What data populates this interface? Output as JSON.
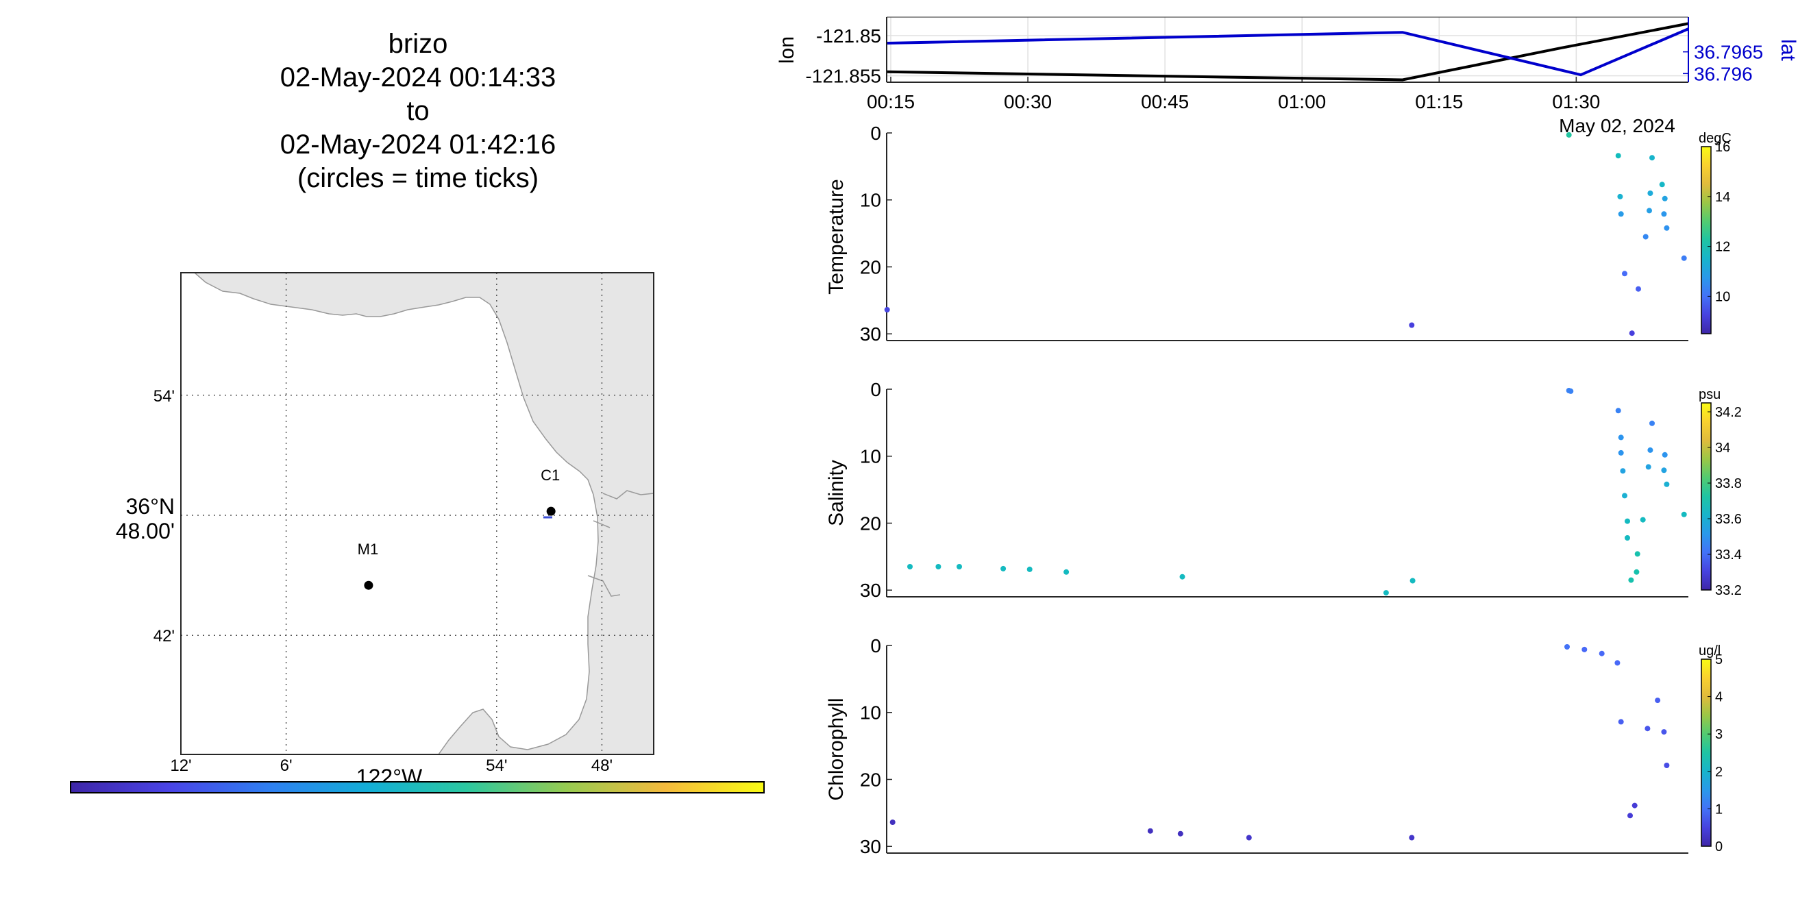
{
  "title": {
    "lines": [
      "brizo",
      "02-May-2024 00:14:33",
      "to",
      "02-May-2024 01:42:16",
      "(circles = time ticks)"
    ]
  },
  "colors": {
    "land": "#e6e6e6",
    "track_lon": "#000000",
    "track_lat": "#0000cc",
    "axis": "#262626"
  },
  "map": {
    "lat_labels": [
      {
        "text": "54'",
        "lat_min": 54
      },
      {
        "text": "36°N",
        "sub": "48.00'",
        "lat_min": 48
      },
      {
        "text": "42'",
        "lat_min": 42
      }
    ],
    "lon_labels": [
      {
        "text": "12'",
        "lon_min": 12
      },
      {
        "text": "6'",
        "lon_min": 6
      },
      {
        "text": "54'",
        "lon_min": -6
      },
      {
        "text": "48'",
        "lon_min": -12
      }
    ],
    "lon_title": "122°W",
    "moorings": [
      {
        "name": "M1",
        "lat_min": 44.5,
        "lon_min": 1.3
      },
      {
        "name": "C1",
        "lat_min": 48.2,
        "lon_min": -9.1
      }
    ],
    "time_colorbar": [
      "#3e26a8",
      "#4a44e6",
      "#2f7ff1",
      "#13aed7",
      "#2cc8a0",
      "#96cb51",
      "#f4ba3d",
      "#f9fb15"
    ]
  },
  "chart_data": [
    {
      "type": "line",
      "name": "position",
      "x_tick_labels": [
        "00:15",
        "00:30",
        "00:45",
        "01:00",
        "01:15",
        "01:30"
      ],
      "x_minutes": [
        15,
        30,
        45,
        60,
        75,
        90
      ],
      "date_label": "May 02, 2024",
      "xlim": [
        14.55,
        102.27
      ],
      "ylabel_left": "lon",
      "ylabel_right": "lat",
      "left_ticks": [
        "-121.85",
        "-121.855"
      ],
      "right_ticks": [
        "36.7965",
        "36.796"
      ],
      "ylim_left": [
        -121.8558,
        -121.8477
      ],
      "ylim_right": [
        36.7958,
        36.7973
      ],
      "series": [
        {
          "axis": "left",
          "color": "#000000",
          "x_minutes": [
            14.55,
            71.0,
            88.5,
            102.27
          ],
          "values": [
            -121.8545,
            -121.8555,
            -121.8515,
            -121.8485
          ]
        },
        {
          "axis": "right",
          "color": "#0000cc",
          "x_minutes": [
            14.55,
            71.0,
            90.5,
            102.27
          ],
          "values": [
            36.7967,
            36.79695,
            36.79597,
            36.79703
          ]
        }
      ]
    },
    {
      "type": "scatter",
      "name": "temperature",
      "ylabel": "Temperature",
      "colorbar_unit": "degC",
      "colorbar_ticks": [
        10,
        12,
        14,
        16
      ],
      "clim": [
        8.5,
        16
      ],
      "ylim": [
        0,
        31
      ],
      "y_ticks": [
        0,
        10,
        20,
        30
      ],
      "points": [
        {
          "t": 14.6,
          "depth": 26.4,
          "value": 9.3
        },
        {
          "t": 72.0,
          "depth": 28.7,
          "value": 9.2
        },
        {
          "t": 89.2,
          "depth": 0.3,
          "value": 12.3
        },
        {
          "t": 94.6,
          "depth": 3.4,
          "value": 11.8
        },
        {
          "t": 98.3,
          "depth": 3.7,
          "value": 11.5
        },
        {
          "t": 99.4,
          "depth": 7.7,
          "value": 11.6
        },
        {
          "t": 94.8,
          "depth": 9.5,
          "value": 11.4
        },
        {
          "t": 98.1,
          "depth": 9.0,
          "value": 11.2
        },
        {
          "t": 99.7,
          "depth": 9.8,
          "value": 11.0
        },
        {
          "t": 94.9,
          "depth": 12.1,
          "value": 10.8
        },
        {
          "t": 98.0,
          "depth": 11.6,
          "value": 10.9
        },
        {
          "t": 99.6,
          "depth": 12.1,
          "value": 10.7
        },
        {
          "t": 99.9,
          "depth": 14.2,
          "value": 10.6
        },
        {
          "t": 97.6,
          "depth": 15.5,
          "value": 10.4
        },
        {
          "t": 101.8,
          "depth": 18.7,
          "value": 10.2
        },
        {
          "t": 95.3,
          "depth": 21.0,
          "value": 9.9
        },
        {
          "t": 96.8,
          "depth": 23.3,
          "value": 9.7
        },
        {
          "t": 96.1,
          "depth": 29.9,
          "value": 9.2
        }
      ]
    },
    {
      "type": "scatter",
      "name": "salinity",
      "ylabel": "Salinity",
      "colorbar_unit": "psu",
      "colorbar_ticks": [
        33.2,
        33.4,
        33.6,
        33.8,
        34,
        34.2
      ],
      "clim": [
        33.2,
        34.25
      ],
      "ylim": [
        0,
        31
      ],
      "y_ticks": [
        0,
        10,
        20,
        30
      ],
      "points": [
        {
          "t": 17.1,
          "depth": 26.5,
          "value": 33.65
        },
        {
          "t": 20.2,
          "depth": 26.5,
          "value": 33.65
        },
        {
          "t": 22.5,
          "depth": 26.5,
          "value": 33.65
        },
        {
          "t": 27.3,
          "depth": 26.8,
          "value": 33.65
        },
        {
          "t": 30.2,
          "depth": 26.9,
          "value": 33.65
        },
        {
          "t": 34.2,
          "depth": 27.3,
          "value": 33.65
        },
        {
          "t": 46.9,
          "depth": 28.0,
          "value": 33.65
        },
        {
          "t": 69.2,
          "depth": 30.4,
          "value": 33.65
        },
        {
          "t": 72.1,
          "depth": 28.6,
          "value": 33.65
        },
        {
          "t": 89.2,
          "depth": 0.2,
          "value": 33.45
        },
        {
          "t": 89.4,
          "depth": 0.3,
          "value": 33.45
        },
        {
          "t": 94.6,
          "depth": 3.2,
          "value": 33.45
        },
        {
          "t": 98.3,
          "depth": 5.1,
          "value": 33.45
        },
        {
          "t": 94.9,
          "depth": 7.2,
          "value": 33.5
        },
        {
          "t": 94.9,
          "depth": 9.5,
          "value": 33.5
        },
        {
          "t": 98.1,
          "depth": 9.1,
          "value": 33.5
        },
        {
          "t": 99.7,
          "depth": 9.8,
          "value": 33.5
        },
        {
          "t": 95.1,
          "depth": 12.2,
          "value": 33.55
        },
        {
          "t": 97.9,
          "depth": 11.6,
          "value": 33.55
        },
        {
          "t": 99.6,
          "depth": 12.1,
          "value": 33.55
        },
        {
          "t": 99.9,
          "depth": 14.2,
          "value": 33.6
        },
        {
          "t": 95.3,
          "depth": 15.9,
          "value": 33.6
        },
        {
          "t": 101.8,
          "depth": 18.7,
          "value": 33.65
        },
        {
          "t": 95.6,
          "depth": 19.7,
          "value": 33.65
        },
        {
          "t": 97.3,
          "depth": 19.5,
          "value": 33.65
        },
        {
          "t": 95.6,
          "depth": 22.2,
          "value": 33.65
        },
        {
          "t": 96.7,
          "depth": 24.6,
          "value": 33.7
        },
        {
          "t": 96.6,
          "depth": 27.3,
          "value": 33.7
        },
        {
          "t": 96.0,
          "depth": 28.5,
          "value": 33.7
        }
      ]
    },
    {
      "type": "scatter",
      "name": "chlorophyll",
      "ylabel": "Chlorophyll",
      "colorbar_unit": "ug/l",
      "colorbar_ticks": [
        0,
        1,
        2,
        3,
        4,
        5
      ],
      "clim": [
        0,
        5
      ],
      "ylim": [
        0,
        31
      ],
      "y_ticks": [
        0,
        10,
        20,
        30
      ],
      "points": [
        {
          "t": 15.2,
          "depth": 26.4,
          "value": 0.2
        },
        {
          "t": 43.4,
          "depth": 27.7,
          "value": 0.2
        },
        {
          "t": 46.7,
          "depth": 28.1,
          "value": 0.2
        },
        {
          "t": 54.2,
          "depth": 28.7,
          "value": 0.3
        },
        {
          "t": 72.0,
          "depth": 28.7,
          "value": 0.3
        },
        {
          "t": 89.0,
          "depth": 0.2,
          "value": 1.0
        },
        {
          "t": 90.9,
          "depth": 0.6,
          "value": 0.9
        },
        {
          "t": 92.8,
          "depth": 1.2,
          "value": 0.9
        },
        {
          "t": 94.5,
          "depth": 2.6,
          "value": 0.9
        },
        {
          "t": 98.9,
          "depth": 8.2,
          "value": 0.8
        },
        {
          "t": 94.9,
          "depth": 11.4,
          "value": 0.8
        },
        {
          "t": 97.8,
          "depth": 12.4,
          "value": 0.7
        },
        {
          "t": 99.6,
          "depth": 12.9,
          "value": 0.7
        },
        {
          "t": 99.9,
          "depth": 17.9,
          "value": 0.6
        },
        {
          "t": 96.4,
          "depth": 23.9,
          "value": 0.4
        },
        {
          "t": 95.9,
          "depth": 25.4,
          "value": 0.4
        }
      ]
    }
  ]
}
